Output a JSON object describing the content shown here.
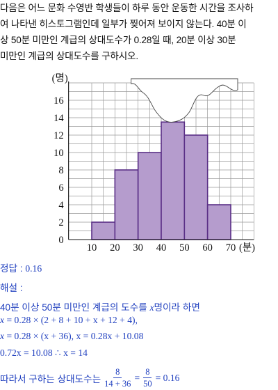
{
  "problem": {
    "lines": [
      "다음은 어느 문화 수영반 학생들이 하루 동안 운동한 시간을 조사하",
      "여 나타낸 히스토그램인데 일부가 찢어져 보이지 않는다. 40분 이",
      "상 50분 미만인 계급의 상대도수가 0.28일 때, 20분 이상 30분",
      "미만인 계급의 상대도수를 구하시오."
    ]
  },
  "chart_data": {
    "type": "bar",
    "xlabel": "(분)",
    "ylabel": "(명)",
    "x_ticks": [
      10,
      20,
      30,
      40,
      50,
      60,
      70
    ],
    "y_ticks": [
      0,
      2,
      4,
      6,
      8,
      10,
      12,
      14,
      16
    ],
    "ylim": [
      0,
      18
    ],
    "bins": [
      {
        "from": 10,
        "to": 20,
        "value": 2
      },
      {
        "from": 20,
        "to": 30,
        "value": 8
      },
      {
        "from": 30,
        "to": 40,
        "value": 10
      },
      {
        "from": 40,
        "to": 50,
        "value": 13.5,
        "torn": true
      },
      {
        "from": 50,
        "to": 60,
        "value": 12
      },
      {
        "from": 60,
        "to": 70,
        "value": 4
      }
    ],
    "grid": true,
    "torn_region": "top-center",
    "bar_color": "#b59ccd",
    "bar_edge": "#5a2f86",
    "grid_color": "#999999"
  },
  "solution": {
    "answer_label": "정답 :",
    "answer_value": "0.16",
    "explain_label": "해설 :",
    "line1_a": "40분 이상 50분 미만인 계급의 도수를",
    "line1_var": "x",
    "line1_b": "명이라 하면",
    "line2": "= 0.28 × (2 + 8 + 10 + x + 12 + 4),",
    "line3": "= 0.28 × (x + 36),  x = 0.28x + 10.08",
    "line4": "0.72x = 10.08      ∴  x = 14",
    "line5_prefix": "따라서 구하는 상대도수는",
    "frac1_num": "8",
    "frac1_den": "14 + 36",
    "eq": "=",
    "frac2_num": "8",
    "frac2_den": "50",
    "result": "= 0.16",
    "x_var": "x"
  },
  "colors": {
    "solution_text": "#1f3fbf"
  }
}
